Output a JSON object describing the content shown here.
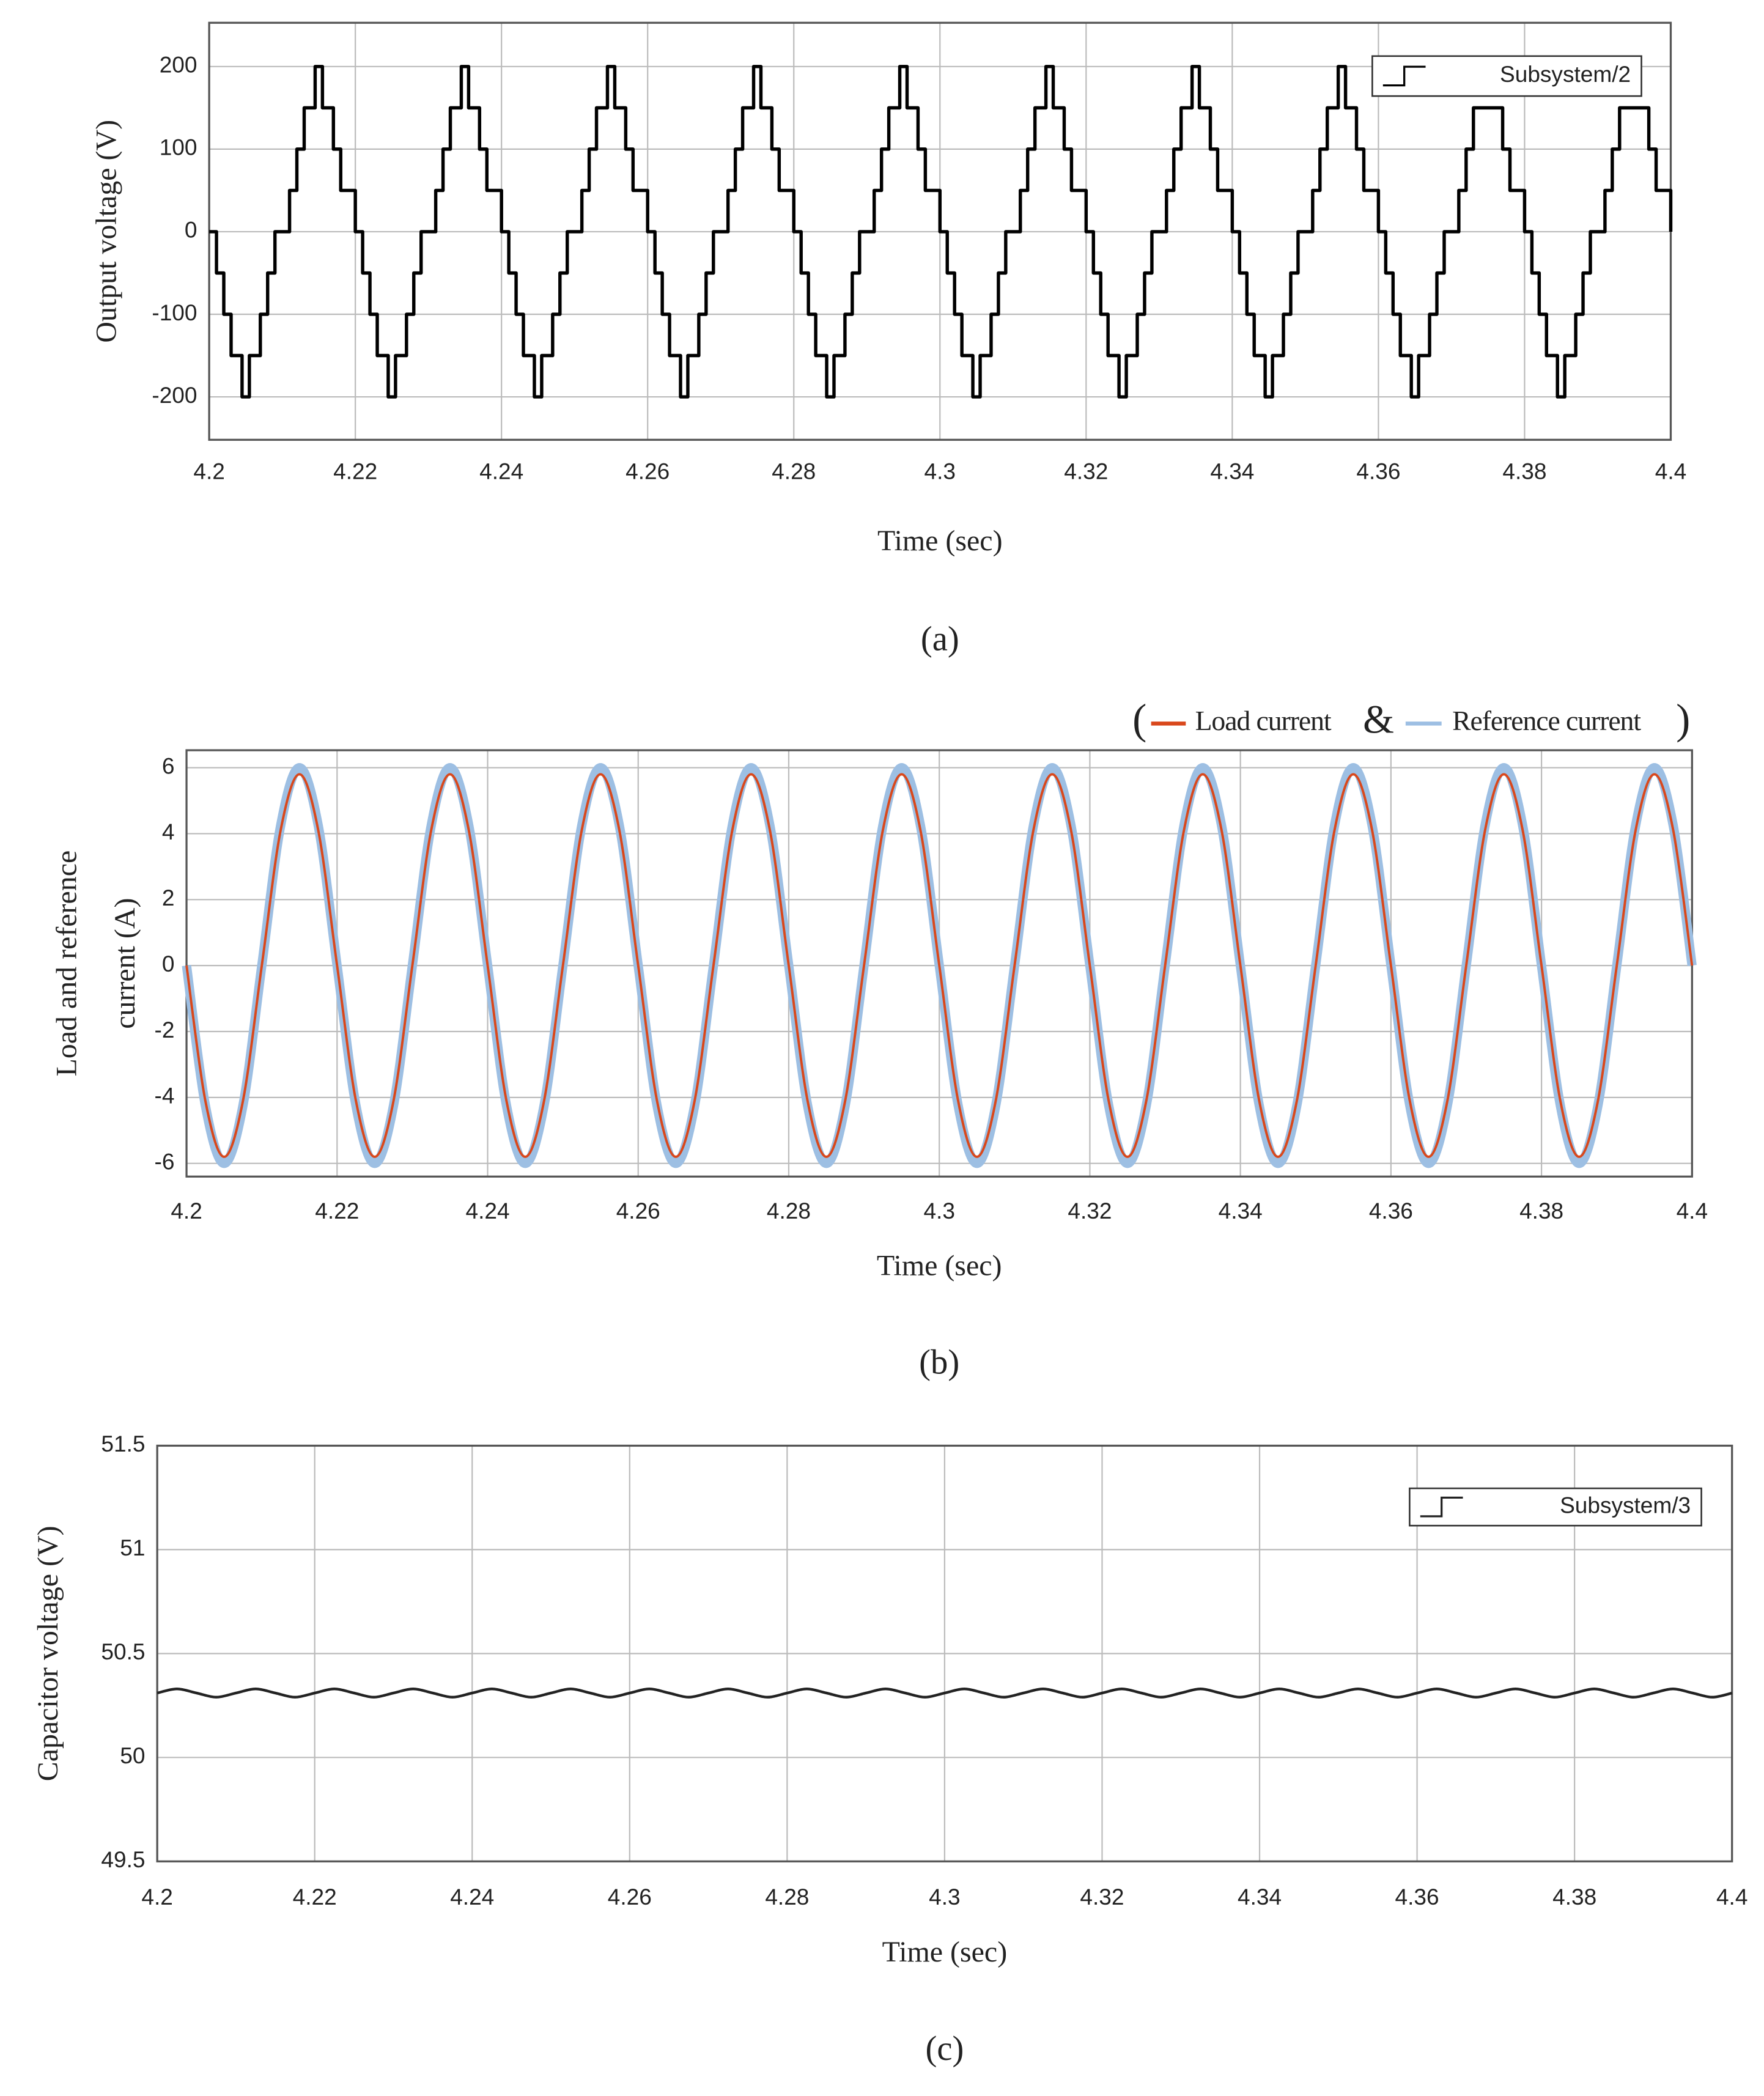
{
  "chart_data": [
    {
      "type": "line",
      "step": true,
      "caption": "(a)",
      "xlabel": "Time (sec)",
      "ylabel": "Output voltage (V)",
      "xlim": [
        4.2,
        4.4
      ],
      "ylim": [
        -252,
        253
      ],
      "xticks": [
        4.2,
        4.22,
        4.24,
        4.26,
        4.28,
        4.3,
        4.32,
        4.34,
        4.36,
        4.38,
        4.4
      ],
      "yticks": [
        -200,
        -100,
        0,
        100,
        200
      ],
      "grid": true,
      "legend": "upper right",
      "x": [
        4.2,
        4.201,
        4.202,
        4.203,
        4.2045,
        4.2055,
        4.207,
        4.208,
        4.209,
        4.211,
        4.212,
        4.213,
        4.2145,
        4.2155,
        4.217,
        4.218,
        4.22,
        4.221,
        4.222,
        4.223,
        4.2245,
        4.2255,
        4.227,
        4.228,
        4.229,
        4.231,
        4.232,
        4.233,
        4.2345,
        4.2355,
        4.237,
        4.238,
        4.24,
        4.241,
        4.242,
        4.243,
        4.2445,
        4.2455,
        4.247,
        4.248,
        4.249,
        4.251,
        4.252,
        4.253,
        4.2545,
        4.2555,
        4.257,
        4.258,
        4.26,
        4.261,
        4.262,
        4.263,
        4.2645,
        4.2655,
        4.267,
        4.268,
        4.269,
        4.271,
        4.272,
        4.273,
        4.2745,
        4.2755,
        4.277,
        4.278,
        4.28,
        4.281,
        4.282,
        4.283,
        4.2845,
        4.2855,
        4.287,
        4.288,
        4.289,
        4.291,
        4.292,
        4.293,
        4.2945,
        4.2955,
        4.297,
        4.298,
        4.3,
        4.301,
        4.302,
        4.303,
        4.3045,
        4.3055,
        4.307,
        4.308,
        4.309,
        4.311,
        4.312,
        4.313,
        4.3145,
        4.3155,
        4.317,
        4.318,
        4.32,
        4.321,
        4.322,
        4.323,
        4.3245,
        4.3255,
        4.327,
        4.328,
        4.329,
        4.331,
        4.332,
        4.333,
        4.3345,
        4.3355,
        4.337,
        4.338,
        4.34,
        4.341,
        4.342,
        4.343,
        4.3445,
        4.3455,
        4.347,
        4.348,
        4.349,
        4.351,
        4.352,
        4.353,
        4.3545,
        4.3555,
        4.357,
        4.358,
        4.36,
        4.361,
        4.362,
        4.363,
        4.3645,
        4.3655,
        4.367,
        4.368,
        4.369,
        4.371,
        4.372,
        4.373,
        4.3745,
        4.3755,
        4.377,
        4.378,
        4.38,
        4.381,
        4.382,
        4.383,
        4.3845,
        4.3855,
        4.387,
        4.388,
        4.389,
        4.391,
        4.392,
        4.393,
        4.3945,
        4.3955,
        4.397,
        4.398,
        4.4
      ],
      "series": [
        {
          "name": "Subsystem/2",
          "color": "#000000",
          "values": [
            0,
            -50,
            -100,
            -150,
            -200,
            -150,
            -100,
            -50,
            0,
            50,
            100,
            150,
            200,
            150,
            100,
            50,
            0,
            -50,
            -100,
            -150,
            -200,
            -150,
            -100,
            -50,
            0,
            50,
            100,
            150,
            200,
            150,
            100,
            50,
            0,
            -50,
            -100,
            -150,
            -200,
            -150,
            -100,
            -50,
            0,
            50,
            100,
            150,
            200,
            150,
            100,
            50,
            0,
            -50,
            -100,
            -150,
            -200,
            -150,
            -100,
            -50,
            0,
            50,
            100,
            150,
            200,
            150,
            100,
            50,
            0,
            -50,
            -100,
            -150,
            -200,
            -150,
            -100,
            -50,
            0,
            50,
            100,
            150,
            200,
            150,
            100,
            50,
            0,
            -50,
            -100,
            -150,
            -200,
            -150,
            -100,
            -50,
            0,
            50,
            100,
            150,
            200,
            150,
            100,
            50,
            0,
            -50,
            -100,
            -150,
            -200,
            -150,
            -100,
            -50,
            0,
            50,
            100,
            150,
            200,
            150,
            100,
            50,
            0,
            -50,
            -100,
            -150,
            -200,
            -150,
            -100,
            -50,
            0,
            50,
            100,
            150,
            200,
            150,
            100,
            50,
            0,
            -50,
            -100,
            -150,
            -200,
            -150,
            -100,
            -50,
            0,
            50,
            100,
            150,
            150,
            150,
            100,
            50,
            0,
            -50,
            -100,
            -150,
            -200,
            -150,
            -100,
            -50,
            0,
            50,
            100,
            150,
            150,
            150,
            100,
            50,
            0
          ]
        }
      ]
    },
    {
      "type": "line",
      "smooth": true,
      "caption": "(b)",
      "xlabel": "Time (sec)",
      "ylabel": [
        "Load and reference",
        "current (A)"
      ],
      "legend_open": "(",
      "legend_join": "&",
      "legend_close": ")",
      "xlim": [
        4.2,
        4.4
      ],
      "ylim": [
        -6.4,
        6.53
      ],
      "xticks": [
        4.2,
        4.22,
        4.24,
        4.26,
        4.28,
        4.3,
        4.32,
        4.34,
        4.36,
        4.38,
        4.4
      ],
      "yticks": [
        -6,
        -4,
        -2,
        0,
        2,
        4,
        6
      ],
      "grid": true,
      "x": [
        4.2,
        4.2025,
        4.205,
        4.2075,
        4.21,
        4.2125,
        4.215,
        4.2175,
        4.22,
        4.2225,
        4.225,
        4.2275,
        4.23,
        4.2325,
        4.235,
        4.2375,
        4.24,
        4.2425,
        4.245,
        4.2475,
        4.25,
        4.2525,
        4.255,
        4.2575,
        4.26,
        4.2625,
        4.265,
        4.2675,
        4.27,
        4.2725,
        4.275,
        4.2775,
        4.28,
        4.2825,
        4.285,
        4.2875,
        4.29,
        4.2925,
        4.295,
        4.2975,
        4.3,
        4.3025,
        4.305,
        4.3075,
        4.31,
        4.3125,
        4.315,
        4.3175,
        4.32,
        4.3225,
        4.325,
        4.3275,
        4.33,
        4.3325,
        4.335,
        4.3375,
        4.34,
        4.3425,
        4.345,
        4.3475,
        4.35,
        4.3525,
        4.355,
        4.3575,
        4.36,
        4.3625,
        4.365,
        4.3675,
        4.37,
        4.3725,
        4.375,
        4.3775,
        4.38,
        4.3825,
        4.385,
        4.3875,
        4.39,
        4.3925,
        4.395,
        4.3975,
        4.4
      ],
      "series": [
        {
          "name": "Reference current",
          "color": "#9dbfe3",
          "width": 7,
          "values": [
            0,
            -4.24,
            -6,
            -4.24,
            0,
            4.24,
            6,
            4.24,
            0,
            -4.24,
            -6,
            -4.24,
            0,
            4.24,
            6,
            4.24,
            0,
            -4.24,
            -6,
            -4.24,
            0,
            4.24,
            6,
            4.24,
            0,
            -4.24,
            -6,
            -4.24,
            0,
            4.24,
            6,
            4.24,
            0,
            -4.24,
            -6,
            -4.24,
            0,
            4.24,
            6,
            4.24,
            0,
            -4.24,
            -6,
            -4.24,
            0,
            4.24,
            6,
            4.24,
            0,
            -4.24,
            -6,
            -4.24,
            0,
            4.24,
            6,
            4.24,
            0,
            -4.24,
            -6,
            -4.24,
            0,
            4.24,
            6,
            4.24,
            0,
            -4.24,
            -6,
            -4.24,
            0,
            4.24,
            6,
            4.24,
            0,
            -4.24,
            -6,
            -4.24,
            0,
            4.24,
            6,
            4.24,
            0
          ]
        },
        {
          "name": "Load current",
          "color": "#d9481c",
          "width": 1.8,
          "values": [
            0,
            -4.1,
            -5.8,
            -4.1,
            0,
            4.1,
            5.8,
            4.1,
            0,
            -4.1,
            -5.8,
            -4.1,
            0,
            4.1,
            5.8,
            4.1,
            0,
            -4.1,
            -5.8,
            -4.1,
            0,
            4.1,
            5.8,
            4.1,
            0,
            -4.1,
            -5.8,
            -4.1,
            0,
            4.1,
            5.8,
            4.1,
            0,
            -4.1,
            -5.8,
            -4.1,
            0,
            4.1,
            5.8,
            4.1,
            0,
            -4.1,
            -5.8,
            -4.1,
            0,
            4.1,
            5.8,
            4.1,
            0,
            -4.1,
            -5.8,
            -4.1,
            0,
            4.1,
            5.8,
            4.1,
            0,
            -4.1,
            -5.8,
            -4.1,
            0,
            4.1,
            5.8,
            4.1,
            0,
            -4.1,
            -5.8,
            -4.1,
            0,
            4.1,
            5.8,
            4.1,
            0,
            -4.1,
            -5.8,
            -4.1,
            0,
            4.1,
            5.8,
            4.1,
            0
          ]
        }
      ]
    },
    {
      "type": "line",
      "smooth": true,
      "caption": "(c)",
      "xlabel": "Time (sec)",
      "ylabel": "Capacitor voltage (V)",
      "xlim": [
        4.2,
        4.4
      ],
      "ylim": [
        49.5,
        51.5
      ],
      "xticks": [
        4.2,
        4.22,
        4.24,
        4.26,
        4.28,
        4.3,
        4.32,
        4.34,
        4.36,
        4.38,
        4.4
      ],
      "yticks": [
        49.5,
        50,
        50.5,
        51,
        51.5
      ],
      "grid": true,
      "legend": "upper right",
      "x": [
        4.2,
        4.2025,
        4.205,
        4.2075,
        4.21,
        4.2125,
        4.215,
        4.2175,
        4.22,
        4.2225,
        4.225,
        4.2275,
        4.23,
        4.2325,
        4.235,
        4.2375,
        4.24,
        4.2425,
        4.245,
        4.2475,
        4.25,
        4.2525,
        4.255,
        4.2575,
        4.26,
        4.2625,
        4.265,
        4.2675,
        4.27,
        4.2725,
        4.275,
        4.2775,
        4.28,
        4.2825,
        4.285,
        4.2875,
        4.29,
        4.2925,
        4.295,
        4.2975,
        4.3,
        4.3025,
        4.305,
        4.3075,
        4.31,
        4.3125,
        4.315,
        4.3175,
        4.32,
        4.3225,
        4.325,
        4.3275,
        4.33,
        4.3325,
        4.335,
        4.3375,
        4.34,
        4.3425,
        4.345,
        4.3475,
        4.35,
        4.3525,
        4.355,
        4.3575,
        4.36,
        4.3625,
        4.365,
        4.3675,
        4.37,
        4.3725,
        4.375,
        4.3775,
        4.38,
        4.3825,
        4.385,
        4.3875,
        4.39,
        4.3925,
        4.395,
        4.3975,
        4.4
      ],
      "series": [
        {
          "name": "Subsystem/3",
          "color": "#222222",
          "width": 2,
          "values": [
            50.31,
            50.33,
            50.31,
            50.29,
            50.31,
            50.33,
            50.31,
            50.29,
            50.31,
            50.33,
            50.31,
            50.29,
            50.31,
            50.33,
            50.31,
            50.29,
            50.31,
            50.33,
            50.31,
            50.29,
            50.31,
            50.33,
            50.31,
            50.29,
            50.31,
            50.33,
            50.31,
            50.29,
            50.31,
            50.33,
            50.31,
            50.29,
            50.31,
            50.33,
            50.31,
            50.29,
            50.31,
            50.33,
            50.31,
            50.29,
            50.31,
            50.33,
            50.31,
            50.29,
            50.31,
            50.33,
            50.31,
            50.29,
            50.31,
            50.33,
            50.31,
            50.29,
            50.31,
            50.33,
            50.31,
            50.29,
            50.31,
            50.33,
            50.31,
            50.29,
            50.31,
            50.33,
            50.31,
            50.29,
            50.31,
            50.33,
            50.31,
            50.29,
            50.31,
            50.33,
            50.31,
            50.29,
            50.31,
            50.33,
            50.31,
            50.29,
            50.31,
            50.33,
            50.31,
            50.29,
            50.31
          ]
        }
      ]
    }
  ]
}
